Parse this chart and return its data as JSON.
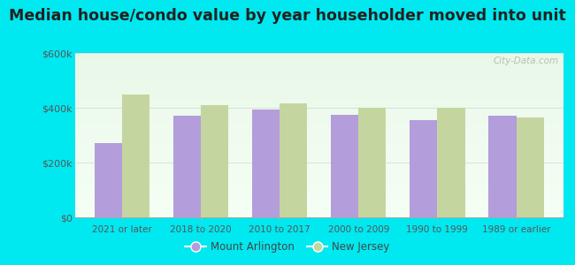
{
  "title": "Median house/condo value by year householder moved into unit",
  "categories": [
    "2021 or later",
    "2018 to 2020",
    "2010 to 2017",
    "2000 to 2009",
    "1990 to 1999",
    "1989 or earlier"
  ],
  "mount_arlington": [
    270000,
    370000,
    395000,
    375000,
    355000,
    370000
  ],
  "new_jersey": [
    450000,
    410000,
    415000,
    400000,
    400000,
    365000
  ],
  "bar_color_ma": "#b39ddb",
  "bar_color_nj": "#c5d5a0",
  "background_outer": "#00e8f0",
  "background_inner_top": "#e8f5e9",
  "background_inner_bottom": "#f5fff5",
  "ylim": [
    0,
    600000
  ],
  "yticks": [
    0,
    200000,
    400000,
    600000
  ],
  "ytick_labels": [
    "$0",
    "$200k",
    "$400k",
    "$600k"
  ],
  "legend_ma": "Mount Arlington",
  "legend_nj": "New Jersey",
  "title_fontsize": 12.5,
  "bar_width": 0.35,
  "grid_color": "#dddddd",
  "tick_color": "#777777",
  "watermark": "City-Data.com"
}
